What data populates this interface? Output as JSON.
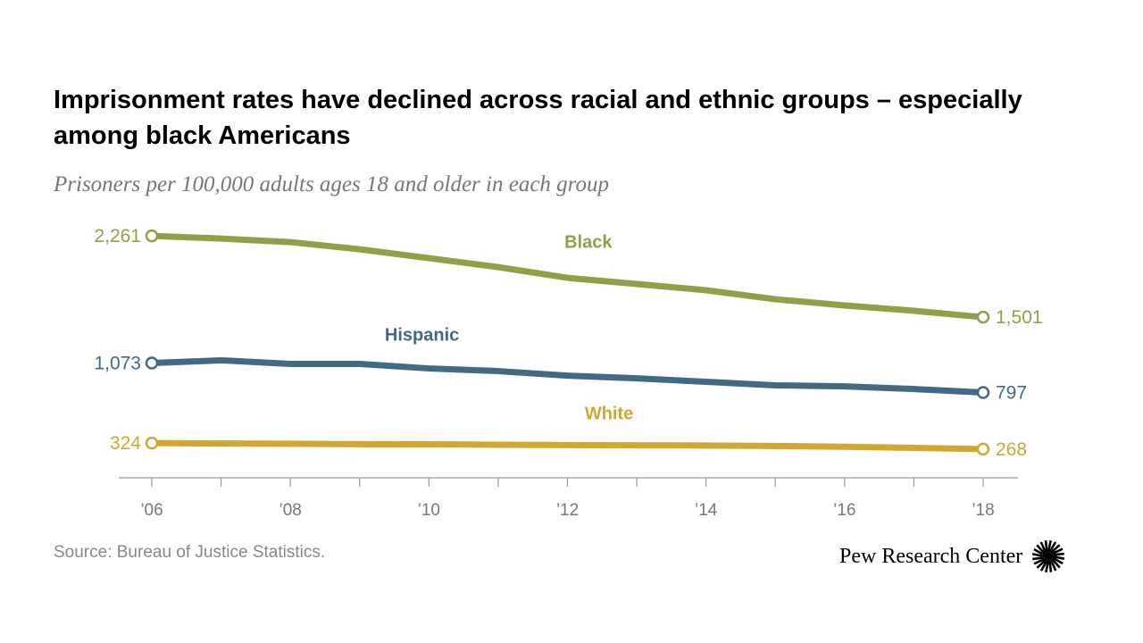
{
  "chart_data": {
    "type": "line",
    "title": "Imprisonment rates have declined across racial and ethnic groups – especially among black Americans",
    "subtitle": "Prisoners per 100,000 adults ages 18 and older in each group",
    "x": [
      2006,
      2007,
      2008,
      2009,
      2010,
      2011,
      2012,
      2013,
      2014,
      2015,
      2016,
      2017,
      2018
    ],
    "x_tick_labels": [
      "’06",
      "’08",
      "’10",
      "’12",
      "’14",
      "’16",
      "’18"
    ],
    "x_tick_years": [
      2006,
      2008,
      2010,
      2012,
      2014,
      2016,
      2018
    ],
    "ylim": [
      0,
      2300
    ],
    "grid": false,
    "series": [
      {
        "name": "Black",
        "color": "#949D48",
        "values": [
          2261,
          2236,
          2203,
          2136,
          2053,
          1969,
          1869,
          1811,
          1753,
          1669,
          1611,
          1561,
          1501
        ],
        "start_label": "2,261",
        "end_label": "1,501",
        "label_year": 2012.3,
        "label_value": 2150
      },
      {
        "name": "Hispanic",
        "color": "#436983",
        "values": [
          1073,
          1098,
          1064,
          1064,
          1022,
          997,
          955,
          930,
          897,
          864,
          855,
          830,
          797
        ],
        "start_label": "1,073",
        "end_label": "797",
        "label_year": 2009.9,
        "label_value": 1280
      },
      {
        "name": "White",
        "color": "#D1A730",
        "values": [
          324,
          320,
          318,
          314,
          313,
          309,
          306,
          304,
          302,
          297,
          290,
          280,
          268
        ],
        "start_label": "324",
        "end_label": "268",
        "label_year": 2012.6,
        "label_value": 545
      }
    ]
  },
  "footer": {
    "source": "Source: Bureau of Justice Statistics.",
    "logo_text": "Pew Research Center"
  }
}
